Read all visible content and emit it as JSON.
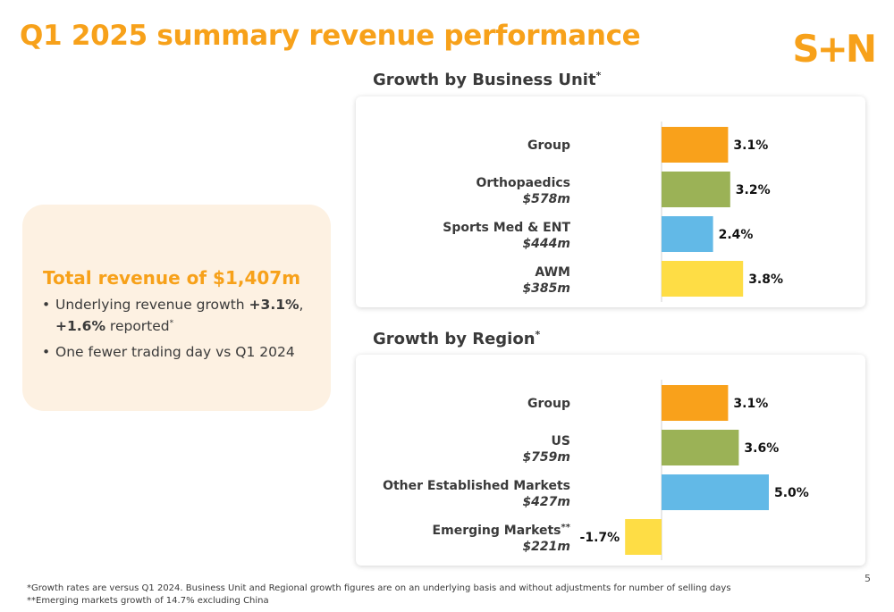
{
  "header": {
    "title": "Q1 2025 summary revenue performance",
    "logo_text": "S+N"
  },
  "summary": {
    "headline": "Total revenue of $1,407m",
    "bullet1": {
      "pre": "Underlying revenue growth ",
      "bold1": "+3.1%",
      "mid": ", ",
      "bold2": "+1.6%",
      "post": " reported",
      "mark": "*"
    },
    "bullet2": "One fewer trading day vs Q1 2024"
  },
  "chart_data": [
    {
      "type": "bar",
      "orientation": "horizontal",
      "title": "Growth by Business Unit",
      "title_mark": "*",
      "categories": [
        "Group",
        "Orthopaedics",
        "Sports Med & ENT",
        "AWM"
      ],
      "sublabels": [
        "",
        "$578m",
        "$444m",
        "$385m"
      ],
      "label_marks": [
        "",
        "",
        "",
        ""
      ],
      "values": [
        3.1,
        3.2,
        2.4,
        3.8
      ],
      "value_labels": [
        "3.1%",
        "3.2%",
        "2.4%",
        "3.8%"
      ],
      "colors": [
        "#f9a11b",
        "#9bb256",
        "#62b9e7",
        "#fedd45"
      ],
      "unit": "%",
      "grid": false
    },
    {
      "type": "bar",
      "orientation": "horizontal",
      "title": "Growth by Region",
      "title_mark": "*",
      "categories": [
        "Group",
        "US",
        "Other Established Markets",
        "Emerging Markets"
      ],
      "sublabels": [
        "",
        "$759m",
        "$427m",
        "$221m"
      ],
      "label_marks": [
        "",
        "",
        "",
        "**"
      ],
      "values": [
        3.1,
        3.6,
        5.0,
        -1.7
      ],
      "value_labels": [
        "3.1%",
        "3.6%",
        "5.0%",
        "-1.7%"
      ],
      "colors": [
        "#f9a11b",
        "#9bb256",
        "#62b9e7",
        "#fedd45"
      ],
      "unit": "%",
      "grid": false
    }
  ],
  "footnotes": {
    "line1": "*Growth rates are versus Q1 2024. Business Unit and Regional growth figures are on an underlying basis and without adjustments for number of selling days",
    "line2": "**Emerging markets growth of 14.7% excluding China"
  },
  "page_number": "5"
}
